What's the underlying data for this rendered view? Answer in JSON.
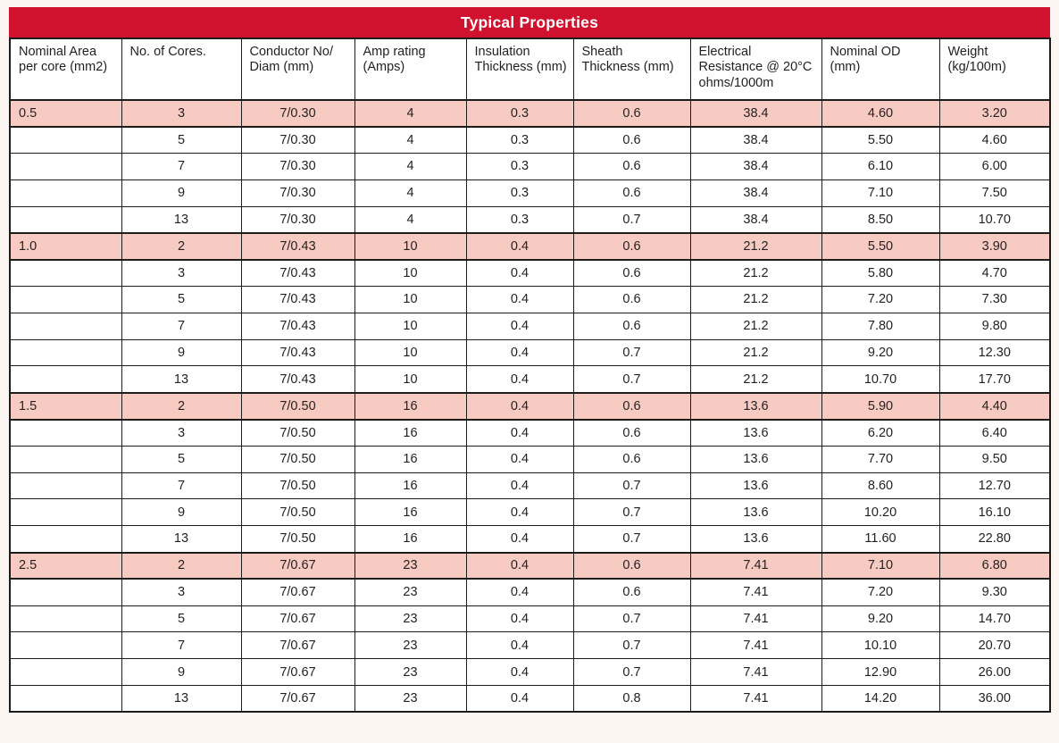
{
  "table": {
    "title": "Typical Properties",
    "columns": [
      "Nominal Area\nper core (mm2)",
      "No. of Cores.",
      "Conductor No/\nDiam (mm)",
      "Amp rating\n(Amps)",
      "Insulation\nThickness (mm)",
      "Sheath\nThickness (mm)",
      "Electrical\nResistance @ 20°C\nohms/1000m",
      "Nominal OD\n(mm)",
      "Weight\n(kg/100m)"
    ],
    "rows": [
      {
        "highlight": true,
        "cells": [
          "0.5",
          "3",
          "7/0.30",
          "4",
          "0.3",
          "0.6",
          "38.4",
          "4.60",
          "3.20"
        ]
      },
      {
        "highlight": false,
        "cells": [
          "",
          "5",
          "7/0.30",
          "4",
          "0.3",
          "0.6",
          "38.4",
          "5.50",
          "4.60"
        ]
      },
      {
        "highlight": false,
        "cells": [
          "",
          "7",
          "7/0.30",
          "4",
          "0.3",
          "0.6",
          "38.4",
          "6.10",
          "6.00"
        ]
      },
      {
        "highlight": false,
        "cells": [
          "",
          "9",
          "7/0.30",
          "4",
          "0.3",
          "0.6",
          "38.4",
          "7.10",
          "7.50"
        ]
      },
      {
        "highlight": false,
        "cells": [
          "",
          "13",
          "7/0.30",
          "4",
          "0.3",
          "0.7",
          "38.4",
          "8.50",
          "10.70"
        ]
      },
      {
        "highlight": true,
        "cells": [
          "1.0",
          "2",
          "7/0.43",
          "10",
          "0.4",
          "0.6",
          "21.2",
          "5.50",
          "3.90"
        ]
      },
      {
        "highlight": false,
        "cells": [
          "",
          "3",
          "7/0.43",
          "10",
          "0.4",
          "0.6",
          "21.2",
          "5.80",
          "4.70"
        ]
      },
      {
        "highlight": false,
        "cells": [
          "",
          "5",
          "7/0.43",
          "10",
          "0.4",
          "0.6",
          "21.2",
          "7.20",
          "7.30"
        ]
      },
      {
        "highlight": false,
        "cells": [
          "",
          "7",
          "7/0.43",
          "10",
          "0.4",
          "0.6",
          "21.2",
          "7.80",
          "9.80"
        ]
      },
      {
        "highlight": false,
        "cells": [
          "",
          "9",
          "7/0.43",
          "10",
          "0.4",
          "0.7",
          "21.2",
          "9.20",
          "12.30"
        ]
      },
      {
        "highlight": false,
        "cells": [
          "",
          "13",
          "7/0.43",
          "10",
          "0.4",
          "0.7",
          "21.2",
          "10.70",
          "17.70"
        ]
      },
      {
        "highlight": true,
        "cells": [
          "1.5",
          "2",
          "7/0.50",
          "16",
          "0.4",
          "0.6",
          "13.6",
          "5.90",
          "4.40"
        ]
      },
      {
        "highlight": false,
        "cells": [
          "",
          "3",
          "7/0.50",
          "16",
          "0.4",
          "0.6",
          "13.6",
          "6.20",
          "6.40"
        ]
      },
      {
        "highlight": false,
        "cells": [
          "",
          "5",
          "7/0.50",
          "16",
          "0.4",
          "0.6",
          "13.6",
          "7.70",
          "9.50"
        ]
      },
      {
        "highlight": false,
        "cells": [
          "",
          "7",
          "7/0.50",
          "16",
          "0.4",
          "0.7",
          "13.6",
          "8.60",
          "12.70"
        ]
      },
      {
        "highlight": false,
        "cells": [
          "",
          "9",
          "7/0.50",
          "16",
          "0.4",
          "0.7",
          "13.6",
          "10.20",
          "16.10"
        ]
      },
      {
        "highlight": false,
        "cells": [
          "",
          "13",
          "7/0.50",
          "16",
          "0.4",
          "0.7",
          "13.6",
          "11.60",
          "22.80"
        ]
      },
      {
        "highlight": true,
        "cells": [
          "2.5",
          "2",
          "7/0.67",
          "23",
          "0.4",
          "0.6",
          "7.41",
          "7.10",
          "6.80"
        ]
      },
      {
        "highlight": false,
        "cells": [
          "",
          "3",
          "7/0.67",
          "23",
          "0.4",
          "0.6",
          "7.41",
          "7.20",
          "9.30"
        ]
      },
      {
        "highlight": false,
        "cells": [
          "",
          "5",
          "7/0.67",
          "23",
          "0.4",
          "0.7",
          "7.41",
          "9.20",
          "14.70"
        ]
      },
      {
        "highlight": false,
        "cells": [
          "",
          "7",
          "7/0.67",
          "23",
          "0.4",
          "0.7",
          "7.41",
          "10.10",
          "20.70"
        ]
      },
      {
        "highlight": false,
        "cells": [
          "",
          "9",
          "7/0.67",
          "23",
          "0.4",
          "0.7",
          "7.41",
          "12.90",
          "26.00"
        ]
      },
      {
        "highlight": false,
        "cells": [
          "",
          "13",
          "7/0.67",
          "23",
          "0.4",
          "0.8",
          "7.41",
          "14.20",
          "36.00"
        ]
      }
    ],
    "colors": {
      "accent_red": "#d1122e",
      "highlight_pink": "#f8cbc2",
      "border_black": "#1c1c1c"
    }
  }
}
